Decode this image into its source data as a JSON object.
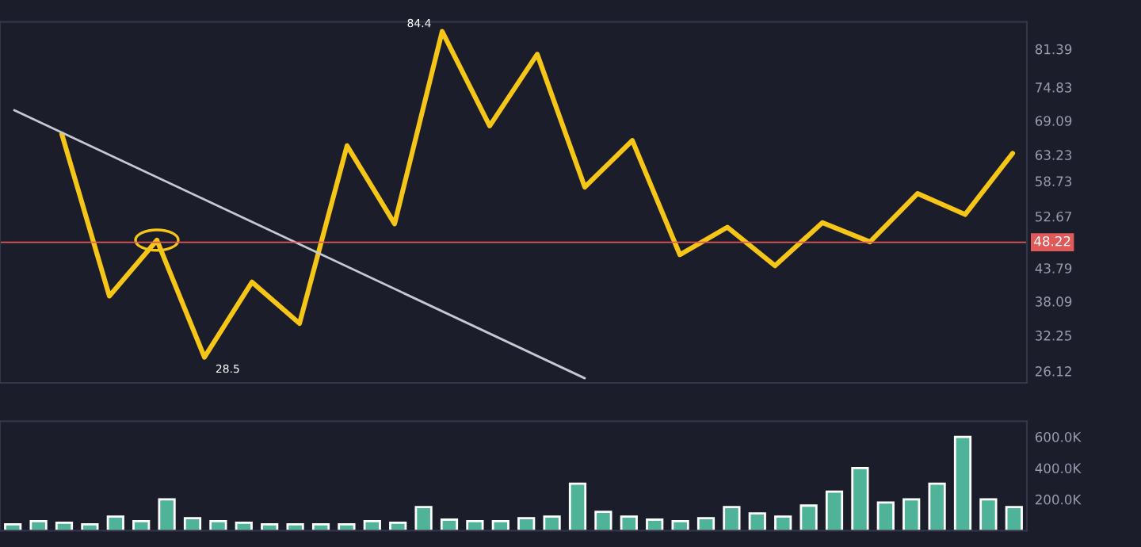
{
  "chart_data": [
    {
      "type": "line",
      "tick_labels": "y",
      "categories": [
        null,
        null,
        null,
        null,
        null,
        null,
        null,
        null,
        null,
        null,
        null,
        null,
        null,
        null,
        null,
        null,
        null,
        null,
        null,
        null,
        null,
        null
      ],
      "ylim": [
        24.1,
        86.05
      ],
      "yticks": [
        81.39,
        74.83,
        69.09,
        63.23,
        58.73,
        52.67,
        43.79,
        38.09,
        32.25,
        26.12
      ],
      "grid": false,
      "legend": false,
      "marker": "none",
      "series": [
        {
          "color": "#f5c518",
          "values": [
            null,
            66.8,
            39.0,
            48.6,
            28.5,
            41.4,
            34.3,
            64.8,
            51.4,
            84.4,
            68.2,
            80.5,
            57.7,
            65.7,
            46.1,
            50.8,
            44.2,
            51.6,
            48.3,
            56.6,
            53.0,
            63.5
          ]
        },
        {
          "color": "#c8c8d0",
          "values": [
            70.9,
            null,
            null,
            null,
            null,
            null,
            null,
            null,
            null,
            null,
            null,
            null,
            24.9,
            null,
            null,
            null,
            null,
            null,
            null,
            null,
            null,
            null
          ]
        }
      ],
      "ref_lines": [
        {
          "axis": "y",
          "value": 48.22,
          "label": "48.22",
          "color": "#e05a5a"
        }
      ],
      "annotations": [
        "84.4",
        "28.5"
      ]
    },
    {
      "type": "bar",
      "tick_labels": "y",
      "grid": false,
      "ylim": [
        0,
        700
      ],
      "yticks": [
        {
          "value": 200,
          "label": "200.0K"
        },
        {
          "value": 400,
          "label": "400.0K"
        },
        {
          "value": 600,
          "label": "600.0K"
        }
      ],
      "categories": [
        null,
        null,
        null,
        null,
        null,
        null,
        null,
        null,
        null,
        null,
        null,
        null,
        null,
        null,
        null,
        null,
        null,
        null,
        null,
        null,
        null,
        null,
        null,
        null,
        null,
        null,
        null,
        null,
        null,
        null,
        null,
        null,
        null,
        null,
        null,
        null,
        null,
        null,
        null,
        null
      ],
      "values": [
        40,
        60,
        50,
        40,
        90,
        60,
        200,
        80,
        60,
        50,
        40,
        40,
        40,
        40,
        60,
        50,
        150,
        70,
        60,
        60,
        80,
        90,
        300,
        120,
        90,
        70,
        60,
        80,
        150,
        110,
        90,
        160,
        250,
        400,
        180,
        200,
        300,
        600,
        200,
        150
      ],
      "color": "#4fb39a"
    }
  ]
}
